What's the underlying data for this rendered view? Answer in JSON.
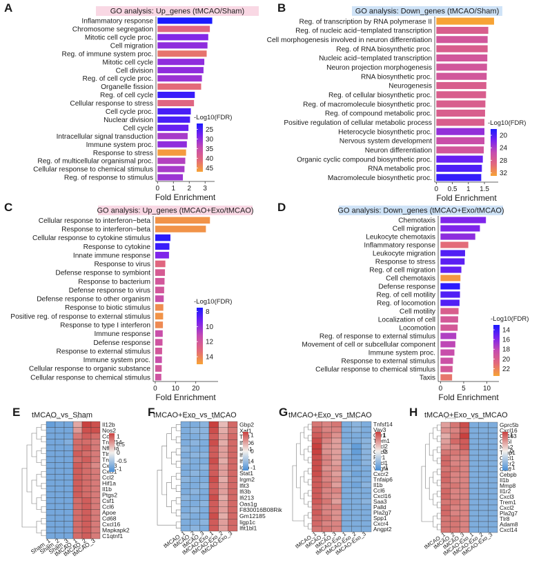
{
  "figure": {
    "panel_letters": [
      "A",
      "B",
      "C",
      "D",
      "E",
      "F",
      "G",
      "H"
    ]
  },
  "chart_data": [
    {
      "panel": "A",
      "type": "bar",
      "orientation": "horizontal",
      "title": "GO analysis: Up_genes (tMCAO/Sham)",
      "xlabel": "Fold Enrichment",
      "xlim": [
        -0.1,
        3.6
      ],
      "xticks": [
        0,
        1,
        2,
        3
      ],
      "legend": {
        "title": "-Log10(FDR)",
        "ticks": [
          25,
          30,
          35,
          40,
          45
        ],
        "range": [
          22,
          47
        ],
        "low_color": "#1a1aff",
        "high_color": "#f7a335"
      },
      "categories": [
        "Inflammatory response",
        "Chromosome segregation",
        "Mitotic cell cycle proc.",
        "Cell migration",
        "Reg. of immune system proc.",
        "Mitotic cell cycle",
        "Cell division",
        "Reg. of cell cycle proc.",
        "Organelle fission",
        "Reg. of cell cycle",
        "Cellular response to stress",
        "Cell cycle proc.",
        "Nuclear division",
        "Cell cycle",
        "Intracellular signal transduction",
        "Immune system proc.",
        "Response to stress",
        "Reg. of multicellular organismal proc.",
        "Cellular response to chemical stimulus",
        "Reg. of response to stimulus"
      ],
      "values": [
        3.45,
        3.3,
        3.2,
        3.15,
        3.1,
        2.95,
        2.9,
        2.8,
        2.75,
        2.35,
        2.3,
        2.1,
        2.05,
        1.95,
        1.9,
        1.85,
        1.8,
        1.75,
        1.7,
        1.6
      ],
      "color_values": [
        22,
        40,
        29,
        30,
        42,
        30,
        30,
        31,
        41,
        24,
        40,
        25,
        25,
        27,
        32,
        30,
        46,
        33,
        32,
        31
      ]
    },
    {
      "panel": "B",
      "type": "bar",
      "orientation": "horizontal",
      "title": "GO analysis: Down_genes (tMCAO/Sham)",
      "xlabel": "Fold Enrichment",
      "xlim": [
        -0.05,
        1.93
      ],
      "xticks": [
        0.0,
        0.5,
        1.0,
        1.5
      ],
      "legend": {
        "title": "-Log10(FDR)",
        "ticks": [
          20,
          24,
          28,
          32
        ],
        "range": [
          18,
          33
        ],
        "low_color": "#1a1aff",
        "high_color": "#f7a335"
      },
      "categories": [
        "Reg. of transcription by RNA polymerase II",
        "Reg. of nucleic acid−templated transcription",
        "Cell morphogenesis involved in neuron differentiation",
        "Reg. of RNA biosynthetic proc.",
        "Nucleic acid−templated transcription",
        "Neuron projection morphogenesis",
        "RNA biosynthetic proc.",
        "Neurogenesis",
        "Reg. of cellular biosynthetic proc.",
        "Reg. of macromolecule biosynthetic proc.",
        "Reg. of compound metabolic proc.",
        "Positive regulation of cellular metabolic process",
        "Heterocycle biosynthetic proc.",
        "Nervous system development",
        "Neuron differentiation",
        "Organic cyclic compound biosynthetic proc.",
        "RNA metabolic proc.",
        "Macromolecule biosynthetic proc."
      ],
      "values": [
        1.8,
        1.62,
        1.6,
        1.6,
        1.59,
        1.58,
        1.57,
        1.56,
        1.55,
        1.53,
        1.52,
        1.5,
        1.5,
        1.5,
        1.48,
        1.45,
        1.42,
        1.4
      ],
      "color_values": [
        33,
        28,
        27,
        28,
        27,
        27,
        27,
        28,
        28,
        28,
        28,
        28,
        23,
        26,
        27,
        21,
        20,
        19
      ]
    },
    {
      "panel": "C",
      "type": "bar",
      "orientation": "horizontal",
      "title": "GO analysis: Up_genes (tMCAO+Exo/tMCAO)",
      "xlabel": "Fold Enrichment",
      "xlim": [
        -1,
        31
      ],
      "xticks": [
        0,
        10,
        20
      ],
      "legend": {
        "title": "-Log10(FDR)",
        "ticks": [
          8,
          10,
          12,
          14
        ],
        "range": [
          7.5,
          15
        ],
        "low_color": "#1a1aff",
        "high_color": "#f7a335"
      },
      "categories": [
        "Cellular response to interferon−beta",
        "Response to interferon−beta",
        "Cellular response to cytokine stimulus",
        "Response to cytokine",
        "Innate immune response",
        "Response to virus",
        "Defense response to symbiont",
        "Response to bacterium",
        "Defense response to virus",
        "Defense response to other organism",
        "Response to biotic stimulus",
        "Positive reg. of response to external stimulus",
        "Response to type I interferon",
        "Immune response",
        "Defense response",
        "Response to external stimulus",
        "Immune system proc.",
        "Cellular response to organic substance",
        "Cellular response to chemical stimulus"
      ],
      "values": [
        27,
        25,
        7.5,
        7,
        6.8,
        5,
        4.8,
        4.6,
        4.4,
        4.2,
        4.0,
        3.9,
        3.8,
        3.7,
        3.6,
        3.4,
        3.3,
        3.2,
        3.0
      ],
      "color_values": [
        14.5,
        14.5,
        7.8,
        8.1,
        9.5,
        13.0,
        12.3,
        12.0,
        12.0,
        11.5,
        14.3,
        14.5,
        14.2,
        11.5,
        11.8,
        12.0,
        11.5,
        12.0,
        11.8
      ]
    },
    {
      "panel": "D",
      "type": "bar",
      "orientation": "horizontal",
      "title": "GO analysis: Down_genes (tMCAO+Exo/tMCAO)",
      "xlabel": "Fold Enrichment",
      "xlim": [
        -0.5,
        12.6
      ],
      "xticks": [
        0,
        5,
        10
      ],
      "legend": {
        "title": "-Log10(FDR)",
        "ticks": [
          14,
          16,
          18,
          20,
          22
        ],
        "range": [
          13,
          23.5
        ],
        "low_color": "#1a1aff",
        "high_color": "#f7a335"
      },
      "categories": [
        "Chemotaxis",
        "Cell migration",
        "Leukocyte chemotaxis",
        "Inflammatory response",
        "Leukocyte migration",
        "Response to stress",
        "Reg. of cell migration",
        "Cell chemotaxis",
        "Defense response",
        "Reg. of cell motility",
        "Reg. of locomotion",
        "Cell motility",
        "Localization of cell",
        "Locomotion",
        "Reg. of response to external stimulus",
        "Movement of cell or subcellular component",
        "Immune system proc.",
        "Response to external stimulus",
        "Cellular response to chemical stimulus",
        "Taxis"
      ],
      "values": [
        9.8,
        8.5,
        7.5,
        6.0,
        5.3,
        5.2,
        4.5,
        4.3,
        4.2,
        4.2,
        4.1,
        3.9,
        3.8,
        3.7,
        3.4,
        3.2,
        3.0,
        2.7,
        2.6,
        2.5
      ],
      "color_values": [
        15.8,
        15.8,
        16.3,
        21.0,
        14.5,
        14.8,
        15.0,
        23.0,
        13.5,
        14.5,
        14.5,
        20.0,
        19.5,
        19.5,
        17.5,
        18.0,
        18.5,
        18.8,
        19.5,
        21.5
      ]
    },
    {
      "panel": "E",
      "type": "heatmap",
      "title": "tMCAO_vs_Sham",
      "columns": [
        "Sham_1",
        "Sham_2",
        "Sham_3",
        "tMCAO_1",
        "tMCAO_2",
        "tMCAO_3"
      ],
      "rows": [
        "Il12b",
        "Nos2",
        "Ccl3",
        "Tnfsf14",
        "Nfkbia",
        "Tlr2",
        "Tnf",
        "Cxcl3",
        "Cxcl1",
        "Ccl2",
        "Hif1a",
        "Il1b",
        "Ptgs2",
        "Csf1",
        "Ccl6",
        "Apoe",
        "Cd68",
        "Cxcl16",
        "Mapkapk2",
        "C1qtnf1"
      ],
      "values": [
        [
          -1,
          -0.9,
          -0.9,
          0.5,
          1.2,
          1.1
        ],
        [
          -0.9,
          -0.9,
          -0.9,
          0.6,
          1.1,
          1.1
        ],
        [
          -0.9,
          -0.9,
          -0.9,
          0.8,
          1.0,
          0.9
        ],
        [
          -0.9,
          -0.9,
          -0.8,
          0.9,
          0.9,
          0.8
        ],
        [
          -0.9,
          -0.9,
          -0.9,
          0.9,
          1.0,
          0.8
        ],
        [
          -0.9,
          -0.9,
          -0.9,
          1.0,
          0.9,
          0.8
        ],
        [
          -0.9,
          -0.9,
          -0.9,
          0.9,
          1.0,
          0.8
        ],
        [
          -0.9,
          -0.9,
          -0.9,
          1.0,
          0.9,
          0.7
        ],
        [
          -0.9,
          -0.9,
          -0.9,
          1.0,
          0.9,
          0.8
        ],
        [
          -0.9,
          -0.9,
          -0.9,
          1.0,
          0.9,
          0.8
        ],
        [
          -0.9,
          -0.9,
          -0.9,
          1.0,
          0.9,
          0.8
        ],
        [
          -0.9,
          -0.9,
          -0.9,
          1.0,
          0.9,
          0.8
        ],
        [
          -0.9,
          -0.9,
          -0.9,
          1.0,
          0.9,
          0.8
        ],
        [
          -0.9,
          -0.9,
          -0.9,
          0.9,
          1.0,
          0.8
        ],
        [
          -0.9,
          -0.9,
          -0.9,
          0.9,
          1.0,
          0.8
        ],
        [
          -0.9,
          -0.9,
          -0.9,
          0.9,
          1.0,
          0.8
        ],
        [
          -0.9,
          -0.9,
          -0.9,
          0.9,
          1.0,
          0.8
        ],
        [
          -0.9,
          -0.9,
          -0.9,
          0.9,
          1.0,
          0.8
        ],
        [
          -0.9,
          -0.9,
          -0.9,
          0.9,
          1.0,
          0.8
        ],
        [
          -0.9,
          -0.9,
          -0.9,
          0.9,
          1.0,
          0.8
        ]
      ],
      "legend_ticks": [
        1,
        0.5,
        0,
        -0.5,
        -1
      ],
      "range": [
        -1.2,
        1.2
      ]
    },
    {
      "panel": "F",
      "type": "heatmap",
      "title": "tMCAO+Exo_vs_tMCAO",
      "columns": [
        "tMCAO_1",
        "tMCAO_2",
        "tMCAO_3",
        "tMCAO-Exo_1",
        "tMCAO-Exo_2",
        "tMCAO-Exo_3"
      ],
      "rows": [
        "Gbp2",
        "Xaf1",
        "Tlr3",
        "Ifi206",
        "Iigp1",
        "Ifit1",
        "Ifi214",
        "Igtp",
        "Stat1",
        "Irgm2",
        "Ifit3",
        "Ifi3b",
        "Ifi213",
        "Oas1g",
        "F830016B08Rik",
        "Gm12185",
        "Iigp1c",
        "Ifit1bl1"
      ],
      "values": [
        [
          -0.9,
          -0.9,
          -0.8,
          1.3,
          0.4,
          1.0
        ],
        [
          -0.9,
          -0.8,
          -0.8,
          1.2,
          0.5,
          0.9
        ],
        [
          -0.9,
          -0.9,
          -0.8,
          1.1,
          0.6,
          1.0
        ],
        [
          -0.9,
          -0.8,
          -0.9,
          1.2,
          0.5,
          1.0
        ],
        [
          -0.8,
          -0.9,
          -0.9,
          1.1,
          0.6,
          1.0
        ],
        [
          -0.9,
          -0.8,
          -0.8,
          1.1,
          0.6,
          1.0
        ],
        [
          -0.8,
          -0.9,
          -0.9,
          1.2,
          0.5,
          1.0
        ],
        [
          -0.9,
          -0.9,
          -0.8,
          1.1,
          0.6,
          1.0
        ],
        [
          -0.9,
          -0.8,
          -0.9,
          1.1,
          0.6,
          1.0
        ],
        [
          -0.8,
          -0.9,
          -0.9,
          1.2,
          0.5,
          1.0
        ],
        [
          -0.9,
          -0.9,
          -0.8,
          1.1,
          0.6,
          1.0
        ],
        [
          -0.9,
          -0.8,
          -0.9,
          1.1,
          0.6,
          1.0
        ],
        [
          -0.8,
          -0.9,
          -0.9,
          1.2,
          0.5,
          1.0
        ],
        [
          -0.9,
          -0.9,
          -0.8,
          1.1,
          0.6,
          1.0
        ],
        [
          -0.9,
          -0.8,
          -0.9,
          1.1,
          0.6,
          1.0
        ],
        [
          -0.8,
          -0.9,
          -0.9,
          1.2,
          0.5,
          1.0
        ],
        [
          -0.9,
          -0.9,
          -0.8,
          1.1,
          0.6,
          1.0
        ],
        [
          -0.9,
          -0.8,
          -0.9,
          1.1,
          0.6,
          1.0
        ]
      ],
      "legend_ticks": [
        1,
        0,
        -1
      ],
      "range": [
        -1.3,
        1.3
      ]
    },
    {
      "panel": "G",
      "type": "heatmap",
      "title": "tMCAO+Exo_vs_tMCAO",
      "columns": [
        "tMCAO_1",
        "tMCAO_2",
        "tMCAO_3",
        "tMCAO-Exo_1",
        "tMCAO-Exo_2",
        "tMCAO-Exo_3"
      ],
      "rows": [
        "Tnfsf14",
        "Vav3",
        "Ccr1",
        "Trem1",
        "Cxcl2",
        "Cxcl3",
        "Fpr1",
        "Cxcl1",
        "Vegfa",
        "Cxcr2",
        "Tnfaip6",
        "Il1b",
        "Ccl6",
        "Cxcl16",
        "Saa3",
        "Palld",
        "Pla2g7",
        "Spp1",
        "Cxcr4",
        "Angpt2"
      ],
      "values": [
        [
          0.9,
          0.8,
          0.9,
          -0.9,
          -0.8,
          -0.9
        ],
        [
          1.0,
          0.8,
          0.8,
          -0.9,
          -0.8,
          -0.9
        ],
        [
          1.1,
          0.9,
          0.7,
          -0.9,
          -0.9,
          -0.9
        ],
        [
          1.2,
          0.8,
          0.6,
          -0.9,
          -0.9,
          -0.8
        ],
        [
          1.3,
          0.7,
          0.6,
          -0.8,
          -1.1,
          -0.8
        ],
        [
          1.3,
          0.7,
          0.6,
          -0.8,
          -1.1,
          -0.8
        ],
        [
          1.2,
          0.8,
          0.6,
          -0.9,
          -1.0,
          -0.8
        ],
        [
          1.2,
          0.8,
          0.6,
          -0.9,
          -1.0,
          -0.8
        ],
        [
          1.2,
          0.7,
          0.7,
          -0.9,
          -0.9,
          -0.9
        ],
        [
          1.2,
          0.8,
          0.6,
          -0.8,
          -1.0,
          -0.9
        ],
        [
          1.1,
          0.8,
          0.7,
          -0.9,
          -0.9,
          -0.9
        ],
        [
          1.1,
          0.9,
          0.6,
          -0.9,
          -1.0,
          -0.8
        ],
        [
          1.1,
          0.8,
          0.8,
          -0.9,
          -0.9,
          -0.9
        ],
        [
          1.1,
          0.8,
          0.7,
          -0.9,
          -0.9,
          -0.9
        ],
        [
          1.1,
          0.9,
          0.6,
          -0.9,
          -0.9,
          -0.8
        ],
        [
          1.0,
          0.8,
          0.8,
          -0.9,
          -0.9,
          -0.9
        ],
        [
          1.1,
          0.8,
          0.7,
          -0.9,
          -0.9,
          -0.9
        ],
        [
          1.0,
          0.9,
          0.7,
          -0.9,
          -0.9,
          -0.9
        ],
        [
          1.0,
          0.8,
          0.8,
          -0.9,
          -0.9,
          -0.9
        ],
        [
          0.9,
          0.9,
          0.8,
          -0.9,
          -0.9,
          -0.9
        ]
      ],
      "legend_ticks": [
        1,
        0,
        -1
      ],
      "range": [
        -1.3,
        1.3
      ]
    },
    {
      "panel": "H",
      "type": "heatmap",
      "title": "tMCAO+Exo_vs_tMCAO",
      "columns": [
        "tMCAO_1",
        "tMCAO_2",
        "tMCAO_3",
        "tMCAO-Exo_1",
        "tMCAO-Exo_2",
        "tMCAO-Exo_3"
      ],
      "rows": [
        "Gprc5b",
        "Cxcl16",
        "Cd163",
        "Cd5l",
        "Nos2",
        "Timp1",
        "Cxcl1",
        "Cxcr2",
        "Ccl6",
        "Cebpb",
        "Il1b",
        "Mmp8",
        "Il1r2",
        "Cxcl3",
        "Trem1",
        "Cxcl2",
        "Pla2g7",
        "Tlr8",
        "Adam8",
        "Cxcl14"
      ],
      "values": [
        [
          0.6,
          0.9,
          1.2,
          -0.9,
          -0.9,
          -0.9
        ],
        [
          0.7,
          0.8,
          1.1,
          -0.9,
          -0.9,
          -0.9
        ],
        [
          0.5,
          0.9,
          1.3,
          -0.9,
          -0.9,
          -0.9
        ],
        [
          0.6,
          1.0,
          1.1,
          -0.9,
          -0.9,
          -0.9
        ],
        [
          0.7,
          0.8,
          1.1,
          -0.9,
          -0.9,
          -0.9
        ],
        [
          0.9,
          0.9,
          0.9,
          -0.9,
          -0.9,
          -0.9
        ],
        [
          1.0,
          0.8,
          0.8,
          -0.9,
          -0.9,
          -0.9
        ],
        [
          1.0,
          0.8,
          0.8,
          -0.9,
          -0.9,
          -0.9
        ],
        [
          0.9,
          0.9,
          0.8,
          -0.9,
          -0.9,
          -0.9
        ],
        [
          1.0,
          0.8,
          0.8,
          -0.9,
          -0.9,
          -0.9
        ],
        [
          1.0,
          0.8,
          0.8,
          -0.9,
          -0.9,
          -0.9
        ],
        [
          0.9,
          0.9,
          0.8,
          -0.9,
          -0.9,
          -0.9
        ],
        [
          1.0,
          0.8,
          0.8,
          -0.9,
          -0.9,
          -0.9
        ],
        [
          1.0,
          0.8,
          0.8,
          -0.9,
          -0.9,
          -0.9
        ],
        [
          0.9,
          0.9,
          0.8,
          -0.9,
          -0.9,
          -0.9
        ],
        [
          1.0,
          0.8,
          0.8,
          -0.9,
          -0.9,
          -0.9
        ],
        [
          1.0,
          0.8,
          0.8,
          -0.9,
          -0.9,
          -0.9
        ],
        [
          0.9,
          0.9,
          0.8,
          -0.9,
          -0.9,
          -0.9
        ],
        [
          0.9,
          0.9,
          0.8,
          -0.9,
          -0.9,
          -0.9
        ],
        [
          0.9,
          0.9,
          0.8,
          -0.9,
          -0.9,
          -0.9
        ]
      ],
      "legend_ticks": [
        1,
        0,
        -1
      ],
      "range": [
        -1.3,
        1.3
      ]
    }
  ],
  "colors": {
    "title_up_bg": "#f9d8e4",
    "title_down_bg": "#cfe3f7",
    "gradient": [
      "#1a1aff",
      "#7a22ee",
      "#c54bb0",
      "#e2687c",
      "#f7a335"
    ],
    "heat_low": "#4a8fd6",
    "heat_mid": "#f4f0ec",
    "heat_high": "#c9413f"
  }
}
